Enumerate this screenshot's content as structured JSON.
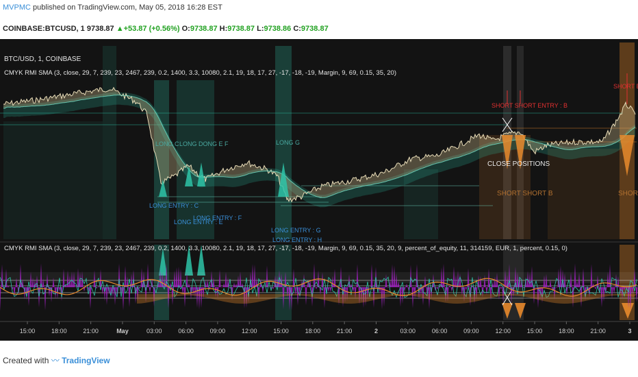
{
  "header": {
    "user": "MVPMC",
    "published": "published on TradingView.com, May 05, 2018 16:28 EST",
    "ticker_line": {
      "symbol": "COINBASE:BTCUSD, 1",
      "price": "9738.87",
      "change": "▲+53.87 (+0.56%)",
      "o_label": "O:",
      "o": "9738.87",
      "h_label": "H:",
      "h": "9738.87",
      "l_label": "L:",
      "l": "9738.86",
      "c_label": "C:",
      "c": "9738.87"
    }
  },
  "chart": {
    "pane_title": "BTC/USD, 1, COINBASE",
    "indicator_1": "CMYK RMI SMA (3, close, 29, 7, 239, 23, 2467, 239, 0.2, 1400, 3.3, 10080, 2.1, 19, 18, 17, 27, -17, -18, -19, Margin, 9, 69, 0.15, 35, 20)",
    "indicator_2": "CMYK RMI SMA (3, close, 29, 7, 239, 23, 2467, 239, 0.2, 1400, 3.3, 10080, 2.1, 19, 18, 17, 27, -17, -18, -19, Margin, 9, 69, 0.15, 35, 20, 9, percent_of_equity, 11, 314159, EUR, 1, percent, 0.15, 0)",
    "annotations": {
      "long_c": "LONG C",
      "long_d_f": "LONG DONG E F",
      "long_g": "LONG G",
      "long_entry_c": "LONG ENTRY : C",
      "long_entry_e": "LONG ENTRY : E",
      "long_entry_f": "LONG ENTRY : F",
      "long_entry_g": "LONG ENTRY : G",
      "long_entry_h": "LONG ENTRY : H",
      "short_entry_b": "SHORT SHORT ENTRY : B",
      "short_b": "SHORT SHORT B",
      "short_entry": "SHORT ENTRY",
      "short": "SHORT",
      "close_positions": "CLOSE POSITIONS"
    },
    "x_ticks": [
      "15:00",
      "18:00",
      "21:00",
      "May",
      "03:00",
      "06:00",
      "09:00",
      "12:00",
      "15:00",
      "18:00",
      "21:00",
      "2",
      "03:00",
      "06:00",
      "09:00",
      "12:00",
      "15:00",
      "18:00",
      "21:00",
      "3"
    ]
  },
  "footer": {
    "created_with": "Created with",
    "brand": "TradingView"
  },
  "colors": {
    "background": "#131313",
    "price": "#c8b88a",
    "long": "#2ec4a8",
    "short": "#e8892c",
    "oscillator": "#a020c0",
    "entry_text": "#3a8fd8",
    "short_text": "#e03030"
  }
}
